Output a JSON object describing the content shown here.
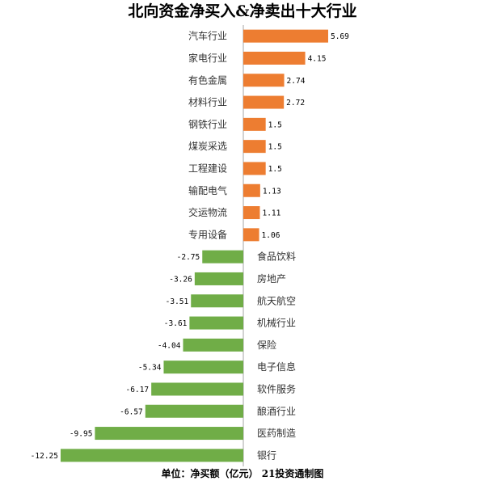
{
  "title": "北向资金净买入&净卖出十大行业",
  "footer": "单位：净买额（亿元） 21投资通制图",
  "colors": {
    "positive": "#ED7D31",
    "negative": "#70AD47",
    "axis": "#A6A6A6"
  },
  "chart_data": {
    "type": "bar",
    "orientation": "horizontal",
    "title": "北向资金净买入&净卖出十大行业",
    "categories": [
      "汽车行业",
      "家电行业",
      "有色金属",
      "材料行业",
      "钢铁行业",
      "煤炭采选",
      "工程建设",
      "输配电气",
      "交运物流",
      "专用设备",
      "食品饮料",
      "房地产",
      "航天航空",
      "机械行业",
      "保险",
      "电子信息",
      "软件服务",
      "酿酒行业",
      "医药制造",
      "银行"
    ],
    "values": [
      5.69,
      4.15,
      2.74,
      2.72,
      1.5,
      1.5,
      1.5,
      1.13,
      1.11,
      1.06,
      -2.75,
      -3.26,
      -3.51,
      -3.61,
      -4.04,
      -5.34,
      -6.17,
      -6.57,
      -9.95,
      -12.25
    ],
    "value_labels": [
      "5.69",
      "4.15",
      "2.74",
      "2.72",
      "1.5",
      "1.5",
      "1.5",
      "1.13",
      "1.11",
      "1.06",
      "-2.75",
      "-3.26",
      "-3.51",
      "-3.61",
      "-4.04",
      "-5.34",
      "-6.17",
      "-6.57",
      "-9.95",
      "-12.25"
    ],
    "unit": "亿元",
    "grid": false,
    "legend": "none"
  }
}
